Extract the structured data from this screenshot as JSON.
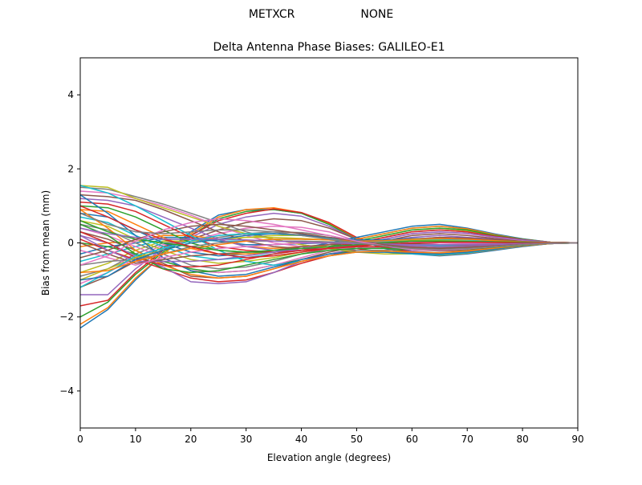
{
  "suptitle": {
    "left": "METXCR",
    "right": "NONE"
  },
  "chart_data": {
    "type": "line",
    "title": "Delta Antenna Phase Biases: GALILEO-E1",
    "xlabel": "Elevation angle (degrees)",
    "ylabel": "Bias from mean (mm)",
    "xlim": [
      0,
      90
    ],
    "ylim": [
      -5,
      5
    ],
    "xticks": [
      0,
      10,
      20,
      30,
      40,
      50,
      60,
      70,
      80,
      90
    ],
    "yticks": [
      -4,
      -2,
      0,
      2,
      4
    ],
    "x": [
      0,
      5,
      10,
      15,
      20,
      25,
      30,
      35,
      40,
      45,
      50,
      55,
      60,
      65,
      70,
      75,
      80,
      85,
      90
    ],
    "grid": false,
    "legend": "none",
    "palette": [
      "#1f77b4",
      "#ff7f0e",
      "#2ca02c",
      "#d62728",
      "#9467bd",
      "#8c564b",
      "#e377c2",
      "#7f7f7f",
      "#bcbd22",
      "#17becf"
    ],
    "series": [
      {
        "values": [
          -2.3,
          -1.8,
          -1.0,
          -0.3,
          0.3,
          0.75,
          0.9,
          0.9,
          0.8,
          0.5,
          0.1,
          -0.15,
          -0.3,
          -0.35,
          -0.3,
          -0.2,
          -0.1,
          -0.02,
          0
        ]
      },
      {
        "values": [
          -2.2,
          -1.75,
          -0.95,
          -0.3,
          0.25,
          0.7,
          0.9,
          0.95,
          0.82,
          0.52,
          0.12,
          -0.12,
          -0.28,
          -0.33,
          -0.28,
          -0.18,
          -0.09,
          -0.02,
          0
        ]
      },
      {
        "values": [
          -2.0,
          -1.6,
          -0.85,
          -0.25,
          0.2,
          0.65,
          0.85,
          0.9,
          0.8,
          0.5,
          0.1,
          -0.12,
          -0.27,
          -0.32,
          -0.27,
          -0.17,
          -0.08,
          -0.02,
          0
        ]
      },
      {
        "values": [
          -1.7,
          -1.55,
          -0.8,
          -0.2,
          0.2,
          0.6,
          0.8,
          0.92,
          0.82,
          0.55,
          0.15,
          -0.1,
          -0.25,
          -0.3,
          -0.25,
          -0.16,
          -0.08,
          -0.02,
          0
        ]
      },
      {
        "values": [
          -1.4,
          -1.4,
          -0.7,
          -0.15,
          0.15,
          0.5,
          0.7,
          0.8,
          0.72,
          0.45,
          0.1,
          -0.08,
          -0.22,
          -0.28,
          -0.23,
          -0.15,
          -0.07,
          -0.02,
          0
        ]
      },
      {
        "values": [
          -1.2,
          -0.9,
          -0.5,
          -0.1,
          0.1,
          0.35,
          0.55,
          0.65,
          0.6,
          0.4,
          0.1,
          -0.05,
          -0.18,
          -0.22,
          -0.2,
          -0.12,
          -0.06,
          -0.01,
          0
        ]
      },
      {
        "values": [
          -1.1,
          -0.8,
          -0.4,
          -0.05,
          0.05,
          0.25,
          0.4,
          0.45,
          0.42,
          0.3,
          0.05,
          -0.05,
          -0.15,
          -0.2,
          -0.17,
          -0.1,
          -0.05,
          -0.01,
          0
        ]
      },
      {
        "values": [
          -0.9,
          -0.7,
          -0.3,
          0.0,
          0.05,
          0.15,
          0.25,
          0.3,
          0.28,
          0.2,
          0.05,
          -0.03,
          -0.1,
          -0.15,
          -0.12,
          -0.08,
          -0.04,
          -0.01,
          0
        ]
      },
      {
        "values": [
          -0.8,
          -0.55,
          -0.2,
          0.05,
          0.05,
          0.1,
          0.15,
          0.2,
          0.2,
          0.15,
          0.03,
          -0.02,
          -0.08,
          -0.1,
          -0.1,
          -0.06,
          -0.03,
          -0.01,
          0
        ]
      },
      {
        "values": [
          -0.5,
          -0.3,
          -0.1,
          0.1,
          0.1,
          0.05,
          0.05,
          0.1,
          0.1,
          0.08,
          0.02,
          0.0,
          -0.05,
          -0.08,
          -0.07,
          -0.05,
          -0.03,
          -0.01,
          0
        ]
      },
      {
        "values": [
          -0.3,
          -0.1,
          0.0,
          0.15,
          0.15,
          0.05,
          -0.05,
          -0.05,
          -0.02,
          0.0,
          0.0,
          0.02,
          0.05,
          0.05,
          0.04,
          0.03,
          0.02,
          0.01,
          0
        ]
      },
      {
        "values": [
          -0.1,
          0.0,
          0.05,
          0.2,
          0.2,
          0.1,
          -0.1,
          -0.15,
          -0.1,
          -0.05,
          0.0,
          0.05,
          0.1,
          0.12,
          0.1,
          0.07,
          0.04,
          0.01,
          0
        ]
      },
      {
        "values": [
          0.0,
          -0.1,
          -0.3,
          -0.5,
          -0.7,
          -0.8,
          -0.75,
          -0.6,
          -0.45,
          -0.3,
          -0.2,
          -0.1,
          0.05,
          0.1,
          0.1,
          0.07,
          0.04,
          0.01,
          0
        ]
      },
      {
        "values": [
          0.1,
          -0.2,
          -0.45,
          -0.7,
          -0.95,
          -1.05,
          -1.0,
          -0.8,
          -0.55,
          -0.35,
          -0.2,
          -0.05,
          0.1,
          0.15,
          0.12,
          0.08,
          0.04,
          0.01,
          0
        ]
      },
      {
        "values": [
          0.2,
          0.0,
          -0.35,
          -0.65,
          -1.05,
          -1.1,
          -1.05,
          -0.8,
          -0.5,
          -0.3,
          -0.15,
          0.05,
          0.15,
          0.2,
          0.15,
          0.1,
          0.05,
          0.01,
          0
        ]
      },
      {
        "values": [
          0.3,
          0.1,
          -0.2,
          -0.55,
          -0.9,
          -0.95,
          -0.9,
          -0.7,
          -0.45,
          -0.25,
          -0.1,
          0.05,
          0.2,
          0.25,
          0.2,
          0.12,
          0.06,
          0.01,
          0
        ]
      },
      {
        "values": [
          0.4,
          0.2,
          -0.1,
          -0.4,
          -0.75,
          -0.8,
          -0.75,
          -0.6,
          -0.4,
          -0.2,
          -0.05,
          0.1,
          0.25,
          0.3,
          0.25,
          0.15,
          0.07,
          0.02,
          0
        ]
      },
      {
        "values": [
          0.5,
          0.35,
          0.0,
          -0.3,
          -0.6,
          -0.7,
          -0.65,
          -0.5,
          -0.3,
          -0.15,
          0.0,
          0.15,
          0.3,
          0.35,
          0.3,
          0.18,
          0.08,
          0.02,
          0
        ]
      },
      {
        "values": [
          0.6,
          0.45,
          0.1,
          -0.2,
          -0.45,
          -0.55,
          -0.5,
          -0.4,
          -0.25,
          -0.1,
          0.05,
          0.2,
          0.35,
          0.4,
          0.33,
          0.2,
          0.09,
          0.02,
          0
        ]
      },
      {
        "values": [
          0.7,
          0.55,
          0.2,
          -0.1,
          -0.35,
          -0.45,
          -0.4,
          -0.3,
          -0.2,
          -0.05,
          0.1,
          0.25,
          0.4,
          0.45,
          0.37,
          0.22,
          0.1,
          0.02,
          0
        ]
      },
      {
        "values": [
          0.8,
          0.7,
          0.35,
          0.0,
          -0.25,
          -0.35,
          -0.3,
          -0.25,
          -0.15,
          0.0,
          0.15,
          0.3,
          0.45,
          0.5,
          0.4,
          0.24,
          0.11,
          0.02,
          0
        ]
      },
      {
        "values": [
          0.9,
          0.85,
          0.5,
          0.15,
          -0.15,
          -0.3,
          -0.3,
          -0.25,
          -0.2,
          -0.05,
          0.1,
          0.25,
          0.4,
          0.45,
          0.38,
          0.22,
          0.1,
          0.02,
          0
        ]
      },
      {
        "values": [
          1.0,
          0.95,
          0.7,
          0.35,
          0.0,
          -0.2,
          -0.25,
          -0.25,
          -0.2,
          -0.1,
          0.05,
          0.2,
          0.35,
          0.4,
          0.35,
          0.2,
          0.1,
          0.02,
          0
        ]
      },
      {
        "values": [
          1.1,
          1.05,
          0.85,
          0.5,
          0.15,
          -0.1,
          -0.2,
          -0.25,
          -0.2,
          -0.12,
          0.0,
          0.15,
          0.3,
          0.35,
          0.3,
          0.18,
          0.09,
          0.02,
          0
        ]
      },
      {
        "values": [
          1.2,
          1.15,
          1.0,
          0.7,
          0.4,
          0.1,
          -0.1,
          -0.2,
          -0.2,
          -0.15,
          -0.05,
          0.1,
          0.25,
          0.3,
          0.26,
          0.16,
          0.08,
          0.02,
          0
        ]
      },
      {
        "values": [
          1.3,
          1.25,
          1.15,
          0.9,
          0.6,
          0.3,
          0.05,
          -0.1,
          -0.15,
          -0.15,
          -0.1,
          0.0,
          0.1,
          0.15,
          0.13,
          0.08,
          0.04,
          0.01,
          0
        ]
      },
      {
        "values": [
          1.4,
          1.35,
          1.2,
          1.0,
          0.75,
          0.45,
          0.2,
          0.0,
          -0.1,
          -0.15,
          -0.15,
          -0.1,
          -0.05,
          0.0,
          0.0,
          0.0,
          0.0,
          0.0,
          0
        ]
      },
      {
        "values": [
          1.5,
          1.45,
          1.25,
          1.05,
          0.8,
          0.55,
          0.3,
          0.1,
          -0.05,
          -0.15,
          -0.2,
          -0.2,
          -0.15,
          -0.12,
          -0.1,
          -0.07,
          -0.04,
          -0.01,
          0
        ]
      },
      {
        "values": [
          1.55,
          1.5,
          1.2,
          0.95,
          0.7,
          0.45,
          0.25,
          0.1,
          -0.05,
          -0.15,
          -0.25,
          -0.3,
          -0.3,
          -0.28,
          -0.22,
          -0.15,
          -0.08,
          -0.02,
          0
        ]
      },
      {
        "values": [
          1.55,
          1.35,
          1.0,
          0.6,
          0.2,
          -0.2,
          -0.5,
          -0.6,
          -0.5,
          -0.35,
          -0.25,
          -0.25,
          -0.3,
          -0.32,
          -0.27,
          -0.17,
          -0.08,
          -0.02,
          0
        ]
      },
      {
        "values": [
          1.3,
          0.8,
          0.2,
          -0.4,
          -0.75,
          -0.9,
          -0.85,
          -0.65,
          -0.45,
          -0.3,
          -0.25,
          -0.25,
          -0.28,
          -0.3,
          -0.25,
          -0.16,
          -0.08,
          -0.02,
          0
        ]
      },
      {
        "values": [
          0.9,
          0.4,
          -0.2,
          -0.6,
          -0.85,
          -0.95,
          -0.9,
          -0.7,
          -0.5,
          -0.35,
          -0.25,
          -0.22,
          -0.25,
          -0.27,
          -0.22,
          -0.14,
          -0.07,
          -0.02,
          0
        ]
      },
      {
        "values": [
          0.5,
          0.2,
          -0.3,
          -0.7,
          -0.8,
          -0.75,
          -0.6,
          -0.45,
          -0.3,
          -0.2,
          -0.15,
          -0.15,
          -0.18,
          -0.2,
          -0.17,
          -0.11,
          -0.06,
          -0.01,
          0
        ]
      },
      {
        "values": [
          0.3,
          0.0,
          -0.4,
          -0.6,
          -0.65,
          -0.6,
          -0.45,
          -0.3,
          -0.2,
          -0.15,
          -0.1,
          -0.1,
          -0.12,
          -0.15,
          -0.12,
          -0.08,
          -0.04,
          -0.01,
          0
        ]
      },
      {
        "values": [
          0.2,
          -0.2,
          -0.5,
          -0.5,
          -0.5,
          -0.45,
          -0.35,
          -0.25,
          -0.15,
          -0.1,
          -0.05,
          -0.05,
          -0.08,
          -0.1,
          -0.08,
          -0.05,
          -0.03,
          -0.01,
          0
        ]
      },
      {
        "values": [
          0.0,
          -0.3,
          -0.55,
          -0.45,
          -0.35,
          -0.3,
          -0.25,
          -0.2,
          -0.1,
          -0.05,
          0.0,
          0.0,
          -0.02,
          -0.05,
          -0.05,
          -0.03,
          -0.02,
          -0.01,
          0
        ]
      },
      {
        "values": [
          -0.2,
          -0.4,
          -0.6,
          -0.4,
          -0.25,
          -0.15,
          -0.1,
          -0.05,
          0.0,
          0.0,
          0.0,
          0.02,
          0.03,
          0.0,
          -0.02,
          -0.02,
          -0.01,
          0.0,
          0
        ]
      },
      {
        "values": [
          -0.6,
          -0.5,
          -0.45,
          -0.3,
          -0.1,
          0.0,
          0.05,
          0.05,
          0.05,
          0.03,
          0.02,
          0.03,
          0.05,
          0.05,
          0.03,
          0.02,
          0.01,
          0.0,
          0
        ]
      },
      {
        "values": [
          -1.0,
          -0.7,
          -0.4,
          -0.2,
          0.0,
          0.1,
          0.15,
          0.15,
          0.12,
          0.08,
          0.05,
          0.05,
          0.08,
          0.08,
          0.06,
          0.04,
          0.02,
          0.0,
          0
        ]
      },
      {
        "values": [
          -1.2,
          -0.8,
          -0.35,
          -0.15,
          0.05,
          0.2,
          0.25,
          0.25,
          0.2,
          0.12,
          0.06,
          0.05,
          0.1,
          0.1,
          0.08,
          0.05,
          0.03,
          0.01,
          0
        ]
      },
      {
        "values": [
          -1.0,
          -0.9,
          -0.45,
          -0.2,
          0.0,
          0.1,
          0.2,
          0.25,
          0.22,
          0.15,
          0.08,
          0.08,
          0.12,
          0.12,
          0.1,
          0.06,
          0.03,
          0.01,
          0
        ]
      },
      {
        "values": [
          -0.8,
          -0.75,
          -0.5,
          -0.3,
          -0.15,
          -0.05,
          0.05,
          0.1,
          0.1,
          0.08,
          0.05,
          0.06,
          0.1,
          0.12,
          0.1,
          0.06,
          0.03,
          0.01,
          0
        ]
      },
      {
        "values": [
          0.6,
          0.3,
          0.1,
          0.0,
          -0.1,
          -0.2,
          -0.25,
          -0.2,
          -0.15,
          -0.1,
          -0.05,
          0.0,
          0.05,
          0.05,
          0.04,
          0.03,
          0.02,
          0.0,
          0
        ]
      },
      {
        "values": [
          1.0,
          0.7,
          0.35,
          0.1,
          -0.1,
          -0.3,
          -0.4,
          -0.35,
          -0.25,
          -0.15,
          -0.08,
          -0.03,
          0.0,
          0.02,
          0.02,
          0.01,
          0.0,
          0.0,
          0
        ]
      },
      {
        "values": [
          0.4,
          0.25,
          0.15,
          0.1,
          0.1,
          0.1,
          0.08,
          0.05,
          0.02,
          0.0,
          -0.02,
          -0.03,
          -0.05,
          -0.05,
          -0.04,
          -0.03,
          -0.02,
          -0.01,
          0
        ]
      },
      {
        "values": [
          -0.4,
          -0.2,
          0.1,
          0.3,
          0.45,
          0.5,
          0.45,
          0.35,
          0.25,
          0.15,
          0.05,
          -0.05,
          -0.12,
          -0.15,
          -0.12,
          -0.08,
          -0.04,
          -0.01,
          0
        ]
      },
      {
        "values": [
          -0.6,
          -0.35,
          0.05,
          0.35,
          0.55,
          0.65,
          0.6,
          0.5,
          0.35,
          0.2,
          0.05,
          -0.08,
          -0.18,
          -0.2,
          -0.16,
          -0.1,
          -0.05,
          -0.01,
          0
        ]
      },
      {
        "values": [
          0.8,
          0.5,
          0.3,
          0.25,
          0.3,
          0.35,
          0.35,
          0.3,
          0.2,
          0.1,
          0.0,
          -0.08,
          -0.15,
          -0.18,
          -0.15,
          -0.1,
          -0.05,
          -0.01,
          0
        ]
      }
    ]
  }
}
